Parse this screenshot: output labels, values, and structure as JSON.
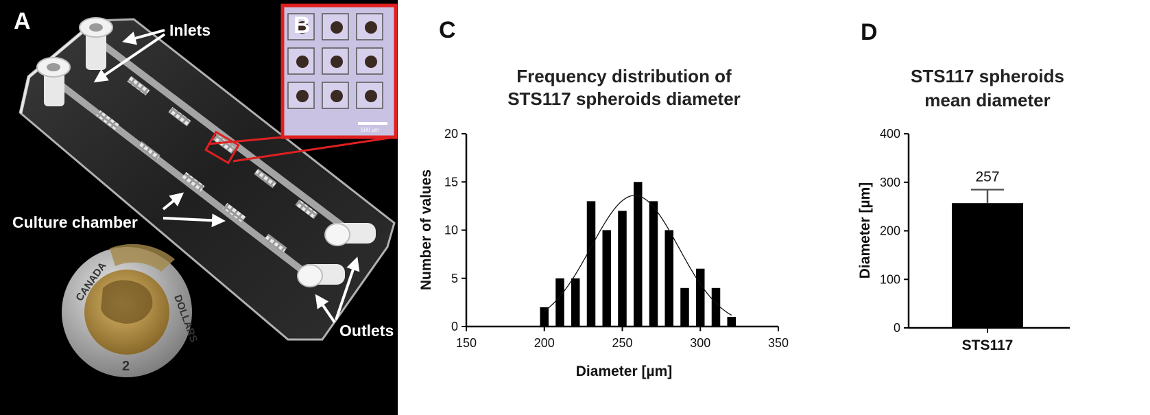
{
  "panels": {
    "a_letter": "A",
    "b_letter": "B",
    "c_letter": "C",
    "d_letter": "D"
  },
  "photo": {
    "inlets_label": "Inlets",
    "culture_chamber_label": "Culture chamber",
    "outlets_label": "Outlets",
    "scale_bar_label": "500 µm",
    "coin_top_text": "CANADA",
    "coin_right_text": "DOLLARS",
    "coin_bottom_text": "2"
  },
  "chart_data": [
    {
      "type": "bar",
      "title": "Frequency distribution of STS117 spheroids diameter",
      "title_lines": [
        "Frequency distribution of",
        "STS117 spheroids diameter"
      ],
      "xlabel": "Diameter [µm]",
      "ylabel": "Number of values",
      "xlim": [
        150,
        350
      ],
      "ylim": [
        0,
        20
      ],
      "xticks": [
        150,
        200,
        250,
        300,
        350
      ],
      "yticks": [
        0,
        5,
        10,
        15,
        20
      ],
      "bin_centers": [
        200,
        210,
        220,
        230,
        240,
        250,
        260,
        270,
        280,
        290,
        300,
        310,
        320
      ],
      "values": [
        2,
        5,
        5,
        13,
        10,
        12,
        15,
        13,
        10,
        4,
        6,
        4,
        1
      ],
      "fit_curve": {
        "type": "gaussian",
        "mean": 258,
        "sd": 28,
        "peak": 13.6,
        "range": [
          200,
          320
        ]
      },
      "grid": false
    },
    {
      "type": "bar",
      "title": "STS117 spheroids mean diameter",
      "title_lines": [
        "STS117 spheroids",
        "mean diameter"
      ],
      "xlabel": "",
      "ylabel": "Diameter [µm]",
      "ylim": [
        0,
        400
      ],
      "yticks": [
        0,
        100,
        200,
        300,
        400
      ],
      "categories": [
        "STS117"
      ],
      "values": [
        257
      ],
      "error": [
        28
      ],
      "data_label": "257",
      "grid": false
    }
  ]
}
